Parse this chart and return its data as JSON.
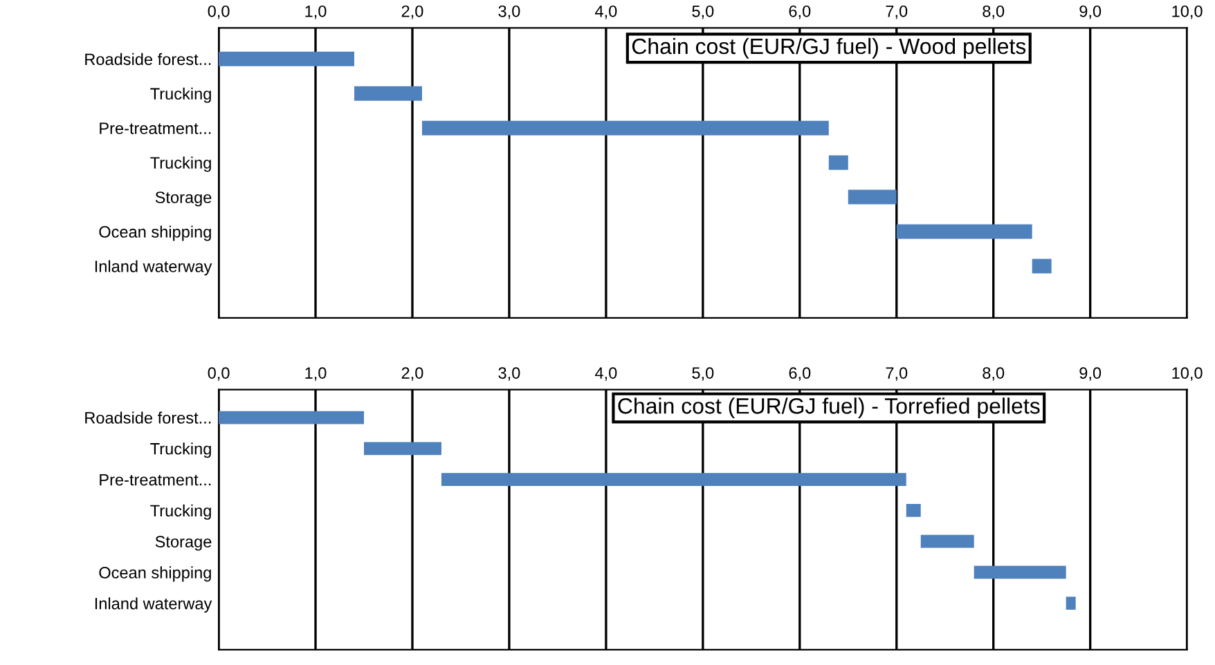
{
  "chart_data": [
    {
      "type": "bar",
      "orientation": "horizontal",
      "title": "Chain cost (EUR/GJ fuel) - Wood pellets",
      "categories": [
        "Roadside forest...",
        "Trucking",
        "Pre-treatment...",
        "Trucking",
        "Storage",
        "Ocean shipping",
        "Inland waterway"
      ],
      "base": [
        0,
        1.4,
        2.1,
        6.3,
        6.5,
        7.0,
        8.4
      ],
      "values": [
        1.4,
        0.7,
        4.2,
        0.2,
        0.5,
        1.4,
        0.2
      ],
      "color": "#4f81bd",
      "xlim": [
        0,
        10
      ],
      "xticks": [
        {
          "value": 0,
          "label": "0,0"
        },
        {
          "value": 1,
          "label": "1,0"
        },
        {
          "value": 2,
          "label": "2,0"
        },
        {
          "value": 3,
          "label": "3,0"
        },
        {
          "value": 4,
          "label": "4,0"
        },
        {
          "value": 5,
          "label": "5,0"
        },
        {
          "value": 6,
          "label": "6,0"
        },
        {
          "value": 7,
          "label": "7,0"
        },
        {
          "value": 8,
          "label": "8,0"
        },
        {
          "value": 9,
          "label": "9,0"
        },
        {
          "value": 10,
          "label": "10,0"
        }
      ],
      "grid": "x"
    },
    {
      "type": "bar",
      "orientation": "horizontal",
      "title": "Chain cost (EUR/GJ fuel) - Torrefied pellets",
      "categories": [
        "Roadside forest...",
        "Trucking",
        "Pre-treatment...",
        "Trucking",
        "Storage",
        "Ocean shipping",
        "Inland waterway"
      ],
      "base": [
        0,
        1.5,
        2.3,
        7.1,
        7.25,
        7.8,
        8.75
      ],
      "values": [
        1.5,
        0.8,
        4.8,
        0.15,
        0.55,
        0.95,
        0.1
      ],
      "color": "#4f81bd",
      "xlim": [
        0,
        10
      ],
      "xticks": [
        {
          "value": 0,
          "label": "0,0"
        },
        {
          "value": 1,
          "label": "1,0"
        },
        {
          "value": 2,
          "label": "2,0"
        },
        {
          "value": 3,
          "label": "3,0"
        },
        {
          "value": 4,
          "label": "4,0"
        },
        {
          "value": 5,
          "label": "5,0"
        },
        {
          "value": 6,
          "label": "6,0"
        },
        {
          "value": 7,
          "label": "7,0"
        },
        {
          "value": 8,
          "label": "8,0"
        },
        {
          "value": 9,
          "label": "9,0"
        },
        {
          "value": 10,
          "label": "10,0"
        }
      ],
      "grid": "x"
    }
  ]
}
